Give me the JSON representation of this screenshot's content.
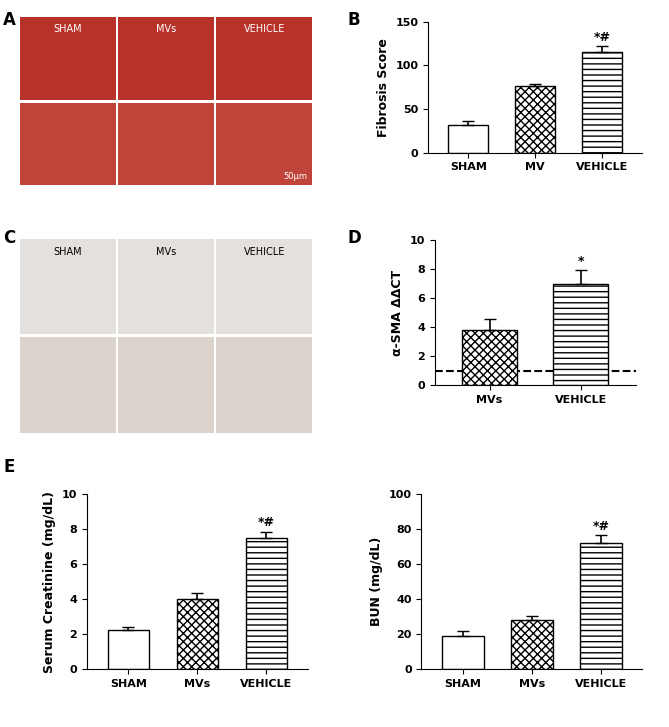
{
  "images": [
    {
      "panel_label": "A",
      "labels": [
        "SHAM",
        "MVs",
        "VEHICLE"
      ],
      "scale_bar": "50μm"
    },
    {
      "panel_label": "C",
      "labels": [
        "SHAM",
        "MVs",
        "VEHICLE"
      ]
    }
  ],
  "chart_data": [
    {
      "panel_label": "B",
      "type": "bar",
      "categories": [
        "SHAM",
        "MV",
        "VEHICLE"
      ],
      "values": [
        32,
        76,
        115
      ],
      "errors": [
        4,
        3,
        7
      ],
      "colors": [
        "#ffffff",
        "#ffffff",
        "#ffffff"
      ],
      "ylabel": "Fibrosis Score",
      "ylim": [
        0,
        150
      ],
      "yticks": [
        0,
        50,
        100,
        150
      ],
      "annotations": [
        {
          "text": "*#",
          "category": "VEHICLE"
        }
      ]
    },
    {
      "panel_label": "D",
      "type": "bar",
      "categories": [
        "MVs",
        "VEHICLE"
      ],
      "values": [
        3.8,
        7.0
      ],
      "errors": [
        0.75,
        0.9
      ],
      "colors": [
        "#ffffff",
        "#ffffff"
      ],
      "reference_line": 1,
      "ylabel": "α-SMA ΔΔCT",
      "ylim": [
        0,
        10
      ],
      "yticks": [
        0,
        2,
        4,
        6,
        8,
        10
      ],
      "annotations": [
        {
          "text": "*",
          "category": "VEHICLE"
        }
      ]
    },
    {
      "panel_label": "E",
      "type": "bar",
      "categories": [
        "SHAM",
        "MVs",
        "VEHICLE"
      ],
      "values": [
        2.25,
        4.0,
        7.5
      ],
      "errors": [
        0.15,
        0.35,
        0.35
      ],
      "colors": [
        "#ffffff",
        "#ffffff",
        "#ffffff"
      ],
      "ylabel": "Serum Creatinine (mg/dL)",
      "ylim": [
        0,
        10
      ],
      "yticks": [
        0,
        2,
        4,
        6,
        8,
        10
      ],
      "annotations": [
        {
          "text": "*#",
          "category": "VEHICLE"
        }
      ]
    },
    {
      "type": "bar",
      "categories": [
        "SHAM",
        "MVs",
        "VEHICLE"
      ],
      "values": [
        19,
        28,
        72
      ],
      "errors": [
        2.5,
        2.5,
        4.5
      ],
      "colors": [
        "#ffffff",
        "#ffffff",
        "#ffffff"
      ],
      "ylabel": "BUN (mg/dL)",
      "ylim": [
        0,
        100
      ],
      "yticks": [
        0,
        20,
        40,
        60,
        80,
        100
      ],
      "annotations": [
        {
          "text": "*#",
          "category": "VEHICLE"
        }
      ]
    }
  ]
}
